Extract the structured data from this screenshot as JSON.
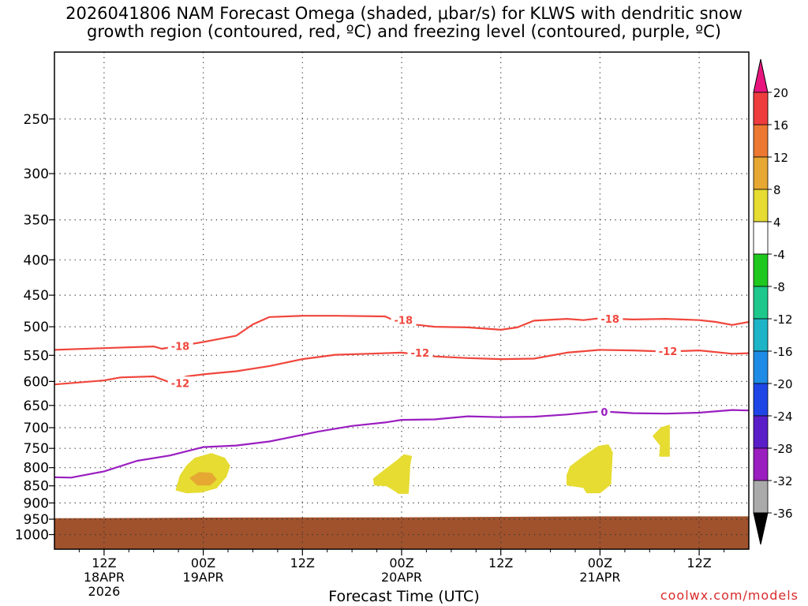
{
  "title_line1": "2026041806 NAM Forecast Omega (shaded, μbar/s) for KLWS with dendritic snow",
  "title_line2": "growth region (contoured, red, ºC) and freezing level (contoured, purple, ºC)",
  "credit": "coolwx.com/models",
  "chart_data": {
    "type": "contour",
    "xlabel": "Forecast Time (UTC)",
    "x_range_hours": [
      6,
      90
    ],
    "y_axis": {
      "scale": "log-pressure",
      "units": "hPa",
      "range": [
        1050,
        200
      ],
      "ticks": [
        250,
        300,
        350,
        400,
        450,
        500,
        550,
        600,
        650,
        700,
        750,
        800,
        850,
        900,
        950,
        1000
      ]
    },
    "x_ticks": [
      {
        "hour": 12,
        "time": "12Z",
        "date": "18APR",
        "year": "2026"
      },
      {
        "hour": 24,
        "time": "00Z",
        "date": "19APR",
        "year": ""
      },
      {
        "hour": 36,
        "time": "12Z",
        "date": "",
        "year": ""
      },
      {
        "hour": 48,
        "time": "00Z",
        "date": "20APR",
        "year": ""
      },
      {
        "hour": 60,
        "time": "12Z",
        "date": "",
        "year": ""
      },
      {
        "hour": 72,
        "time": "00Z",
        "date": "21APR",
        "year": ""
      },
      {
        "hour": 84,
        "time": "12Z",
        "date": "",
        "year": ""
      }
    ],
    "grid": true,
    "contours": [
      {
        "label": "-18",
        "color": "#f0463c",
        "points": [
          [
            6,
            540
          ],
          [
            12,
            537
          ],
          [
            18,
            534
          ],
          [
            19,
            538
          ],
          [
            24,
            526
          ],
          [
            28,
            515
          ],
          [
            30,
            496
          ],
          [
            32,
            484
          ],
          [
            36,
            482
          ],
          [
            40,
            482
          ],
          [
            46,
            483
          ],
          [
            48,
            495
          ],
          [
            50,
            497
          ],
          [
            52,
            500
          ],
          [
            56,
            501
          ],
          [
            60,
            505
          ],
          [
            62,
            501
          ],
          [
            64,
            490
          ],
          [
            68,
            487
          ],
          [
            70,
            489
          ],
          [
            72,
            486
          ],
          [
            76,
            488
          ],
          [
            80,
            487
          ],
          [
            84,
            489
          ],
          [
            86,
            492
          ],
          [
            88,
            497
          ],
          [
            90,
            492
          ]
        ],
        "label_positions": [
          [
            20,
            533
          ],
          [
            47,
            489
          ],
          [
            72,
            487
          ]
        ]
      },
      {
        "label": "-12",
        "color": "#f0463c",
        "points": [
          [
            6,
            606
          ],
          [
            12,
            598
          ],
          [
            14,
            592
          ],
          [
            18,
            590
          ],
          [
            20,
            602
          ],
          [
            22,
            590
          ],
          [
            24,
            586
          ],
          [
            28,
            580
          ],
          [
            32,
            570
          ],
          [
            36,
            557
          ],
          [
            40,
            549
          ],
          [
            44,
            547
          ],
          [
            48,
            545
          ],
          [
            52,
            552
          ],
          [
            56,
            555
          ],
          [
            60,
            557
          ],
          [
            64,
            556
          ],
          [
            68,
            545
          ],
          [
            72,
            540
          ],
          [
            76,
            541
          ],
          [
            80,
            543
          ],
          [
            84,
            541
          ],
          [
            88,
            547
          ],
          [
            90,
            546
          ]
        ],
        "label_positions": [
          [
            20,
            603
          ],
          [
            49,
            545
          ],
          [
            79,
            542
          ]
        ]
      },
      {
        "label": "0",
        "color": "#9a1ec0",
        "points": [
          [
            6,
            826
          ],
          [
            8,
            827
          ],
          [
            12,
            810
          ],
          [
            16,
            782
          ],
          [
            20,
            768
          ],
          [
            24,
            747
          ],
          [
            28,
            743
          ],
          [
            32,
            733
          ],
          [
            34,
            725
          ],
          [
            38,
            709
          ],
          [
            42,
            696
          ],
          [
            46,
            688
          ],
          [
            48,
            682
          ],
          [
            52,
            681
          ],
          [
            56,
            674
          ],
          [
            60,
            676
          ],
          [
            64,
            675
          ],
          [
            68,
            670
          ],
          [
            72,
            663
          ],
          [
            76,
            667
          ],
          [
            80,
            668
          ],
          [
            84,
            666
          ],
          [
            88,
            660
          ],
          [
            90,
            661
          ]
        ],
        "label_positions": [
          [
            72,
            664
          ]
        ]
      }
    ],
    "omega_blobs": [
      {
        "value_range": [
          4,
          8
        ],
        "color": "#e6dc32",
        "points": [
          [
            20.7,
            862
          ],
          [
            21.2,
            822
          ],
          [
            22.0,
            795
          ],
          [
            23.0,
            775
          ],
          [
            25.0,
            763
          ],
          [
            26.6,
            775
          ],
          [
            27.2,
            795
          ],
          [
            26.8,
            823
          ],
          [
            25.6,
            856
          ],
          [
            23.8,
            868
          ],
          [
            22.0,
            870
          ],
          [
            21.3,
            866
          ]
        ]
      },
      {
        "value_range": [
          8,
          12
        ],
        "color": "#e6a832",
        "points": [
          [
            22.4,
            828
          ],
          [
            23.5,
            813
          ],
          [
            25.0,
            815
          ],
          [
            25.6,
            832
          ],
          [
            24.8,
            848
          ],
          [
            23.3,
            848
          ]
        ]
      },
      {
        "value_range": [
          4,
          8
        ],
        "color": "#e6dc32",
        "points": [
          [
            44.6,
            830
          ],
          [
            46.0,
            805
          ],
          [
            47.5,
            780
          ],
          [
            48.3,
            766
          ],
          [
            49.2,
            770
          ],
          [
            49.0,
            792
          ],
          [
            48.9,
            840
          ],
          [
            48.8,
            872
          ],
          [
            47.6,
            872
          ],
          [
            47.3,
            866
          ],
          [
            46.2,
            850
          ],
          [
            44.7,
            848
          ]
        ]
      },
      {
        "value_range": [
          4,
          8
        ],
        "color": "#e6dc32",
        "points": [
          [
            68.0,
            820
          ],
          [
            68.4,
            797
          ],
          [
            70.0,
            771
          ],
          [
            71.8,
            745
          ],
          [
            73.0,
            741
          ],
          [
            73.5,
            760
          ],
          [
            73.4,
            800
          ],
          [
            73.3,
            845
          ],
          [
            72.0,
            870
          ],
          [
            70.4,
            870
          ],
          [
            70.0,
            855
          ],
          [
            68.0,
            848
          ]
        ]
      },
      {
        "value_range": [
          4,
          8
        ],
        "color": "#e6dc32",
        "points": [
          [
            78.4,
            720
          ],
          [
            79.4,
            700
          ],
          [
            80.4,
            694
          ],
          [
            80.4,
            730
          ],
          [
            80.4,
            770
          ],
          [
            79.2,
            770
          ],
          [
            79.3,
            743
          ]
        ]
      }
    ],
    "terrain": {
      "color": "#a0522d",
      "points": [
        [
          6,
          947
        ],
        [
          18,
          946
        ],
        [
          24,
          945
        ],
        [
          48,
          944
        ],
        [
          72,
          941
        ],
        [
          90,
          941
        ]
      ]
    },
    "colorbar": {
      "labels": [
        "20",
        "16",
        "12",
        "8",
        "4",
        "-4",
        "-8",
        "-12",
        "-16",
        "-20",
        "-24",
        "-28",
        "-32",
        "-36"
      ],
      "top_triangle_color": "#e8157e",
      "bottom_triangle_color": "#000000",
      "segments": [
        "#ef3d3d",
        "#ef3d3d",
        "#ec7832",
        "#e6a832",
        "#e6dc32",
        "#ffffff",
        "#1ec81e",
        "#1ec88c",
        "#1eb4c8",
        "#1e8ce6",
        "#1e46e6",
        "#5a1ec8",
        "#9a1ec0",
        "#aaaaaa"
      ]
    }
  }
}
